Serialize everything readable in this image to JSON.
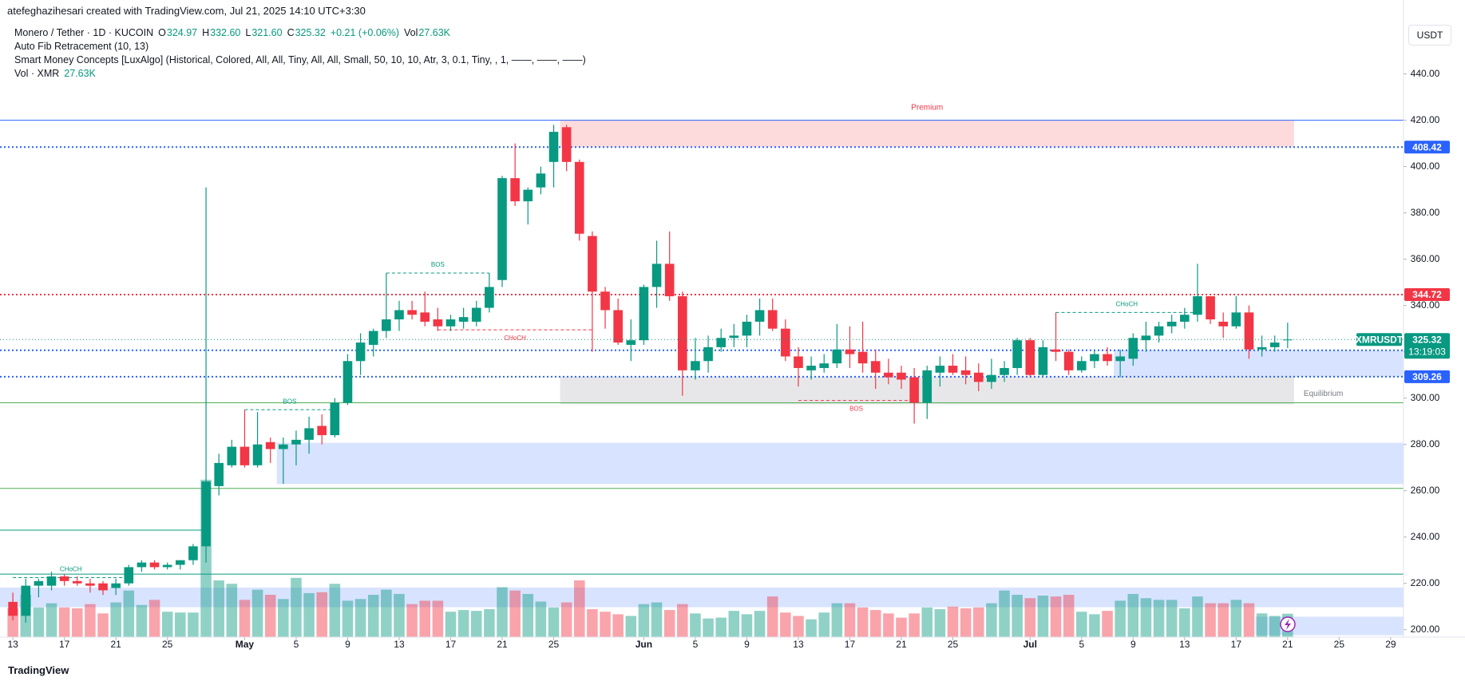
{
  "header": {
    "author_line": "atefeghazihesari created with TradingView.com, Jul 21, 2025 14:10 UTC+3:30"
  },
  "legend": {
    "symbol": "Monero / Tether · 1D · KUCOIN",
    "ohlc": [
      {
        "key": "O",
        "value": "324.97"
      },
      {
        "key": "H",
        "value": "332.60"
      },
      {
        "key": "L",
        "value": "321.60"
      },
      {
        "key": "C",
        "value": "325.32"
      }
    ],
    "change": "+0.21 (+0.06%)",
    "vol_key": "Vol",
    "vol_value": "27.63K",
    "indicators": [
      "Auto Fib Retracement (10, 13)",
      "Smart Money Concepts [LuxAlgo] (Historical, Colored, All, All, Tiny, All, All, Small, 50, 10, 10, Atr, 3, 0.1, Tiny, , 1, ——, ——, ——)"
    ],
    "volume_name": "Vol · XMR",
    "volume_value": "27.63K"
  },
  "currency": "USDT",
  "footer": "TradingView",
  "chart_data": {
    "type": "candlestick",
    "up_color": "#089981",
    "down_color": "#f23645",
    "x": [
      "2025-04-13",
      "2025-04-14",
      "2025-04-15",
      "2025-04-16",
      "2025-04-17",
      "2025-04-18",
      "2025-04-19",
      "2025-04-20",
      "2025-04-21",
      "2025-04-22",
      "2025-04-23",
      "2025-04-24",
      "2025-04-25",
      "2025-04-26",
      "2025-04-27",
      "2025-04-28",
      "2025-04-29",
      "2025-04-30",
      "2025-05-01",
      "2025-05-02",
      "2025-05-03",
      "2025-05-04",
      "2025-05-05",
      "2025-05-06",
      "2025-05-07",
      "2025-05-08",
      "2025-05-09",
      "2025-05-10",
      "2025-05-11",
      "2025-05-12",
      "2025-05-13",
      "2025-05-14",
      "2025-05-15",
      "2025-05-16",
      "2025-05-17",
      "2025-05-18",
      "2025-05-19",
      "2025-05-20",
      "2025-05-21",
      "2025-05-22",
      "2025-05-23",
      "2025-05-24",
      "2025-05-25",
      "2025-05-26",
      "2025-05-27",
      "2025-05-28",
      "2025-05-29",
      "2025-05-30",
      "2025-05-31",
      "2025-06-01",
      "2025-06-02",
      "2025-06-03",
      "2025-06-04",
      "2025-06-05",
      "2025-06-06",
      "2025-06-07",
      "2025-06-08",
      "2025-06-09",
      "2025-06-10",
      "2025-06-11",
      "2025-06-12",
      "2025-06-13",
      "2025-06-14",
      "2025-06-15",
      "2025-06-16",
      "2025-06-17",
      "2025-06-18",
      "2025-06-19",
      "2025-06-20",
      "2025-06-21",
      "2025-06-22",
      "2025-06-23",
      "2025-06-24",
      "2025-06-25",
      "2025-06-26",
      "2025-06-27",
      "2025-06-28",
      "2025-06-29",
      "2025-06-30",
      "2025-07-01",
      "2025-07-02",
      "2025-07-03",
      "2025-07-04",
      "2025-07-05",
      "2025-07-06",
      "2025-07-07",
      "2025-07-08",
      "2025-07-09",
      "2025-07-10",
      "2025-07-11",
      "2025-07-12",
      "2025-07-13",
      "2025-07-14",
      "2025-07-15",
      "2025-07-16",
      "2025-07-17",
      "2025-07-18",
      "2025-07-19",
      "2025-07-20",
      "2025-07-21"
    ],
    "open": [
      212,
      206,
      219,
      219,
      223,
      221,
      220,
      220,
      218,
      220,
      227,
      229,
      227,
      228,
      230,
      236,
      262,
      271,
      279,
      271,
      281,
      278,
      280,
      282,
      288,
      284,
      298,
      316,
      323,
      329,
      334,
      338,
      337,
      334,
      331,
      333,
      333,
      339,
      351,
      395,
      385,
      391,
      402,
      417,
      402,
      370,
      346,
      338,
      323,
      325,
      348,
      358,
      344,
      312,
      316,
      322,
      326,
      327,
      333,
      338,
      330,
      318,
      312,
      313,
      315,
      321,
      320,
      316,
      311,
      311,
      309,
      298,
      311,
      314,
      312,
      311,
      307,
      310,
      313,
      325,
      310,
      321,
      320,
      312,
      316,
      319,
      316,
      317,
      325,
      327,
      331,
      333,
      336,
      344,
      333,
      331,
      337,
      321,
      322,
      324.97
    ],
    "high": [
      216,
      222,
      222,
      225,
      224,
      223,
      222,
      221,
      222,
      228,
      230,
      230,
      229,
      230,
      237,
      391,
      276,
      282,
      295,
      294,
      283,
      283,
      286,
      292,
      293,
      300,
      319,
      328,
      330,
      354,
      342,
      342,
      346,
      339,
      336,
      339,
      342,
      354,
      396,
      410,
      391,
      400,
      418,
      418,
      403,
      372,
      348,
      343,
      334,
      349,
      368,
      372,
      346,
      326,
      327,
      330,
      332,
      336,
      343,
      343,
      334,
      322,
      318,
      319,
      332,
      331,
      333,
      321,
      317,
      314,
      313,
      314,
      318,
      319,
      318,
      315,
      317,
      316,
      326,
      326,
      325,
      337,
      321,
      318,
      321,
      322,
      321,
      328,
      333,
      333,
      336,
      339,
      358,
      344,
      337,
      344,
      340,
      327,
      327,
      332.6
    ],
    "low": [
      204,
      203,
      214,
      217,
      219,
      219,
      216,
      215,
      215,
      219,
      225,
      226,
      226,
      226,
      228,
      229,
      258,
      270,
      270,
      270,
      272,
      263,
      271,
      276,
      280,
      283,
      297,
      310,
      318,
      326,
      329,
      334,
      331,
      329,
      329,
      330,
      331,
      337,
      348,
      383,
      375,
      388,
      391,
      398,
      368,
      320,
      330,
      323,
      316,
      323,
      339,
      342,
      301,
      308,
      311,
      320,
      322,
      322,
      327,
      329,
      316,
      305,
      308,
      311,
      313,
      313,
      311,
      304,
      306,
      304,
      289,
      291,
      305,
      310,
      306,
      303,
      304,
      307,
      310,
      309,
      309,
      316,
      310,
      311,
      313,
      314,
      309,
      314,
      320,
      324,
      328,
      330,
      333,
      332,
      326,
      330,
      317,
      318,
      320,
      321.6
    ],
    "close": [
      206,
      219,
      221,
      223,
      221,
      220,
      219,
      217,
      220,
      227,
      229,
      227,
      228,
      230,
      236,
      264,
      272,
      279,
      271,
      280,
      278,
      280,
      282,
      287,
      284,
      298,
      316,
      324,
      329,
      334,
      338,
      336,
      333,
      331,
      334,
      335,
      339,
      348,
      395,
      385,
      390,
      397,
      415,
      402,
      371,
      346,
      338,
      324,
      325,
      348,
      358,
      344,
      312,
      316,
      322,
      326,
      327,
      333,
      338,
      330,
      318,
      313,
      314,
      315,
      321,
      319,
      315,
      311,
      309,
      308,
      298,
      312,
      314,
      311,
      310,
      307,
      310,
      313,
      325,
      310,
      322,
      320,
      312,
      316,
      319,
      316,
      318,
      326,
      327,
      331,
      333,
      336,
      344,
      334,
      331,
      337,
      321,
      322,
      324,
      325.32
    ],
    "volume": [
      34,
      50,
      35,
      40,
      35,
      34,
      39,
      28,
      41,
      55,
      38,
      44,
      30,
      29,
      29,
      186,
      67,
      63,
      44,
      56,
      50,
      45,
      70,
      52,
      53,
      63,
      43,
      45,
      50,
      56,
      51,
      39,
      43,
      43,
      30,
      32,
      31,
      33,
      59,
      55,
      51,
      42,
      35,
      41,
      67,
      33,
      30,
      27,
      25,
      39,
      41,
      32,
      39,
      28,
      22,
      23,
      31,
      27,
      31,
      48,
      29,
      25,
      21,
      29,
      40,
      40,
      35,
      32,
      28,
      23,
      28,
      35,
      33,
      36,
      34,
      35,
      40,
      55,
      50,
      46,
      49,
      48,
      50,
      30,
      27,
      31,
      43,
      51,
      46,
      44,
      44,
      34,
      48,
      40,
      40,
      44,
      40,
      28,
      25,
      27.63
    ],
    "xlim": [
      "2025-04-12",
      "2025-07-30"
    ],
    "ylim": [
      196.8,
      464
    ],
    "yticks": [
      {
        "value": 200,
        "label": "200.00"
      },
      {
        "value": 220,
        "label": "220.00"
      },
      {
        "value": 240,
        "label": "240.00"
      },
      {
        "value": 260,
        "label": "260.00"
      },
      {
        "value": 280,
        "label": "280.00"
      },
      {
        "value": 300,
        "label": "300.00"
      },
      {
        "value": 320,
        "label": "320.00"
      },
      {
        "value": 340,
        "label": "340.00"
      },
      {
        "value": 360,
        "label": "360.00"
      },
      {
        "value": 380,
        "label": "380.00"
      },
      {
        "value": 400,
        "label": "400.00"
      },
      {
        "value": 420,
        "label": "420.00"
      },
      {
        "value": 440,
        "label": "440.00"
      }
    ],
    "xticks": [
      {
        "value": "2025-04-13",
        "label": "13"
      },
      {
        "value": "2025-04-17",
        "label": "17"
      },
      {
        "value": "2025-04-21",
        "label": "21"
      },
      {
        "value": "2025-04-25",
        "label": "25"
      },
      {
        "value": "2025-05-01",
        "label": "May"
      },
      {
        "value": "2025-05-05",
        "label": "5"
      },
      {
        "value": "2025-05-09",
        "label": "9"
      },
      {
        "value": "2025-05-13",
        "label": "13"
      },
      {
        "value": "2025-05-17",
        "label": "17"
      },
      {
        "value": "2025-05-21",
        "label": "21"
      },
      {
        "value": "2025-05-25",
        "label": "25"
      },
      {
        "value": "2025-06-01",
        "label": "Jun"
      },
      {
        "value": "2025-06-05",
        "label": "5"
      },
      {
        "value": "2025-06-09",
        "label": "9"
      },
      {
        "value": "2025-06-13",
        "label": "13"
      },
      {
        "value": "2025-06-17",
        "label": "17"
      },
      {
        "value": "2025-06-21",
        "label": "21"
      },
      {
        "value": "2025-06-25",
        "label": "25"
      },
      {
        "value": "2025-07-01",
        "label": "Jul"
      },
      {
        "value": "2025-07-05",
        "label": "5"
      },
      {
        "value": "2025-07-09",
        "label": "9"
      },
      {
        "value": "2025-07-13",
        "label": "13"
      },
      {
        "value": "2025-07-17",
        "label": "17"
      },
      {
        "value": "2025-07-21",
        "label": "21"
      },
      {
        "value": "2025-07-25",
        "label": "25"
      },
      {
        "value": "2025-07-29",
        "label": "29"
      }
    ],
    "zones": [
      {
        "label": "Premium",
        "top": 420,
        "bottom": 408.42,
        "from": "2025-05-26",
        "to": "2025-07-21",
        "color": "#f23645"
      },
      {
        "label": "Equilibrium",
        "top": 309.26,
        "bottom": 297.3,
        "from": "2025-05-26",
        "to": "2025-07-21",
        "color": "#787b86"
      },
      {
        "top": 280.7,
        "bottom": 262.9,
        "from": "2025-05-04",
        "color": "#2962ff"
      },
      {
        "top": 320.67,
        "bottom": 309.26,
        "from": "2025-07-08",
        "color": "#2962ff"
      },
      {
        "top": 218.2,
        "bottom": 209.7,
        "from": "2025-04-12",
        "color": "#2962ff"
      },
      {
        "top": 205.6,
        "bottom": 197.6,
        "from": "2025-07-19",
        "color": "#2962ff"
      }
    ],
    "hlines": [
      {
        "value": 420,
        "color": "#2962ff",
        "style": "solid"
      },
      {
        "value": 408.42,
        "color": "#2962ff",
        "style": "dotted",
        "badge": true
      },
      {
        "value": 344.72,
        "color": "#f23645",
        "style": "dotted",
        "badge": true
      },
      {
        "value": 320.67,
        "color": "#2962ff",
        "style": "dotted",
        "badge": true
      },
      {
        "value": 309.26,
        "color": "#2962ff",
        "style": "dotted",
        "badge": true
      },
      {
        "value": 298,
        "color": "#4caf50",
        "style": "solid"
      },
      {
        "value": 261,
        "color": "#4caf50",
        "style": "solid"
      },
      {
        "value": 243,
        "color": "#089981",
        "style": "solid",
        "to": "2025-04-28"
      },
      {
        "value": 224,
        "color": "#089981",
        "style": "solid"
      }
    ],
    "structures": [
      {
        "label": "CHoCH",
        "price": 222.5,
        "from": "2025-04-13",
        "to": "2025-04-22",
        "color": "#089981"
      },
      {
        "label": "BOS",
        "price": 295,
        "from": "2025-05-01",
        "to": "2025-05-08",
        "color": "#089981"
      },
      {
        "label": "BOS",
        "price": 354,
        "from": "2025-05-12",
        "to": "2025-05-20",
        "color": "#089981"
      },
      {
        "label": "CHoCH",
        "price": 329.5,
        "from": "2025-05-16",
        "to": "2025-05-28",
        "color": "#f23645"
      },
      {
        "label": "BOS",
        "price": 299,
        "from": "2025-06-13",
        "to": "2025-06-22",
        "color": "#f23645"
      },
      {
        "label": "CHoCH",
        "price": 337,
        "from": "2025-07-03",
        "to": "2025-07-14",
        "color": "#089981"
      }
    ],
    "last_price": {
      "symbol": "XMRUSDT",
      "countdown": "13:19:03",
      "color": "#089981"
    }
  }
}
